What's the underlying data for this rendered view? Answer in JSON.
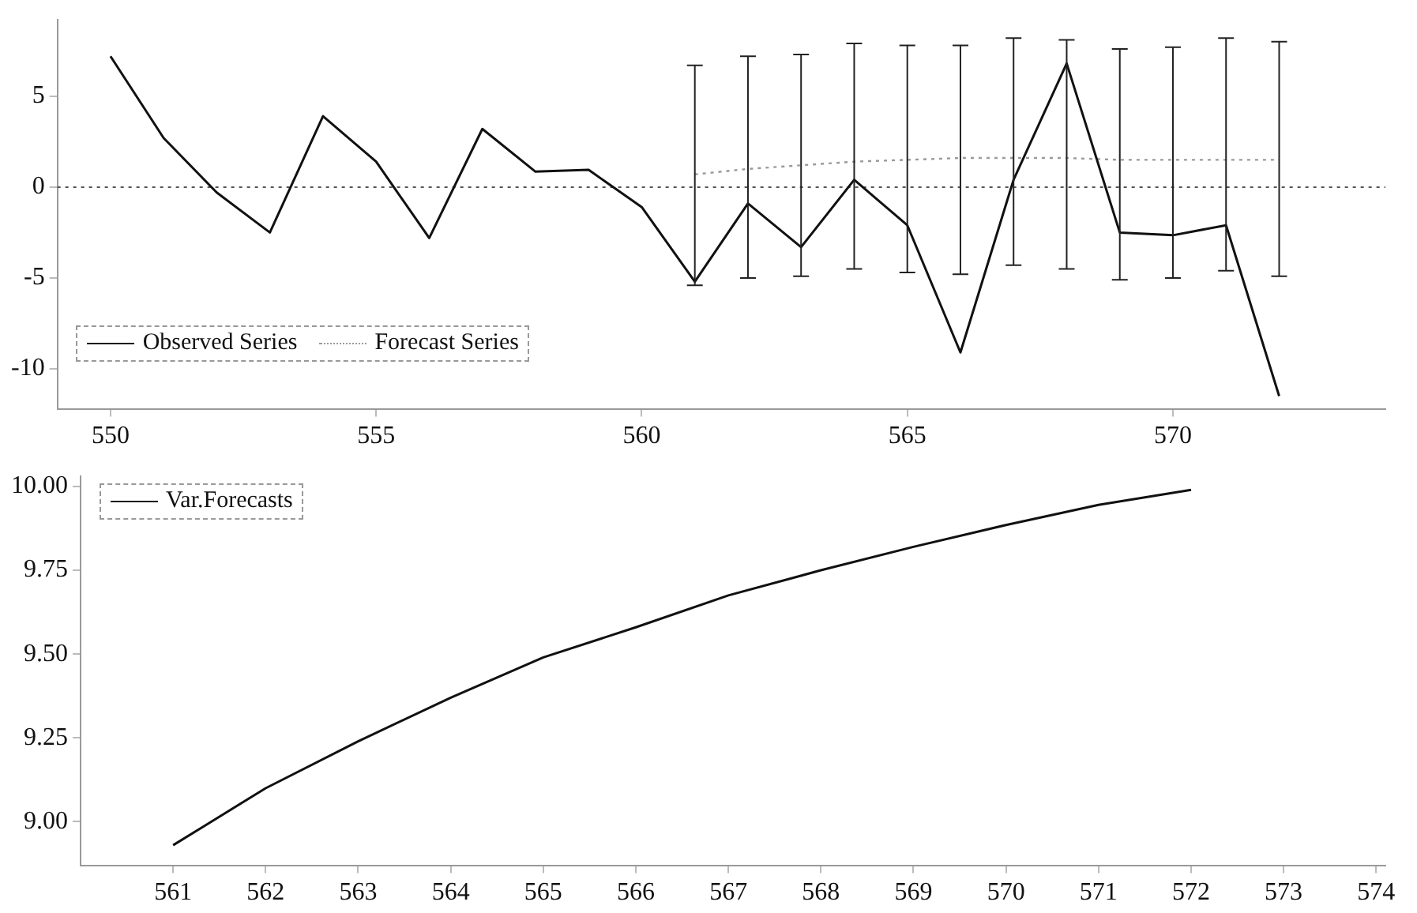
{
  "chart_data": [
    {
      "type": "line",
      "x": [
        550,
        551,
        552,
        553,
        554,
        555,
        556,
        557,
        558,
        559,
        560,
        561,
        562,
        563,
        564,
        565,
        566,
        567,
        568,
        569,
        570,
        571,
        572
      ],
      "series": [
        {
          "name": "Observed Series",
          "color": "#111111",
          "line_style": "solid",
          "values": [
            7.2,
            2.7,
            -0.3,
            -2.5,
            3.9,
            1.4,
            -2.8,
            3.2,
            0.85,
            0.95,
            -1.1,
            -5.2,
            -0.9,
            -3.3,
            0.4,
            -2.1,
            -9.1,
            0.4,
            6.8,
            -2.5,
            -2.65,
            -2.1,
            -11.5
          ]
        },
        {
          "name": "Forecast Series",
          "color": "#9a9a9a",
          "line_style": "dotted",
          "x": [
            561,
            562,
            563,
            564,
            565,
            566,
            567,
            568,
            569,
            570,
            571,
            572
          ],
          "values": [
            0.7,
            1.0,
            1.2,
            1.4,
            1.5,
            1.6,
            1.6,
            1.6,
            1.5,
            1.5,
            1.5,
            1.5
          ],
          "errors": [
            [
              -5.4,
              6.7
            ],
            [
              -5.0,
              7.2
            ],
            [
              -4.9,
              7.3
            ],
            [
              -4.5,
              7.9
            ],
            [
              -4.7,
              7.8
            ],
            [
              -4.8,
              7.8
            ],
            [
              -4.3,
              8.2
            ],
            [
              -4.5,
              8.1
            ],
            [
              -5.1,
              7.6
            ],
            [
              -5.0,
              7.7
            ],
            [
              -4.6,
              8.2
            ],
            [
              -4.9,
              8.0
            ]
          ]
        }
      ],
      "xlim": [
        549,
        574
      ],
      "xticks": [
        550,
        555,
        560,
        565,
        570
      ],
      "ylim": [
        -12.2,
        9.2
      ],
      "yticks": [
        -10,
        -5,
        0,
        5
      ],
      "ref_lines": [
        {
          "axis": "y",
          "value": 0,
          "line_style": "dotted",
          "color": "#555555"
        }
      ],
      "legend": "bottom left",
      "grid": false
    },
    {
      "type": "line",
      "x": [
        561,
        562,
        563,
        564,
        565,
        566,
        567,
        568,
        569,
        570,
        571,
        572
      ],
      "series": [
        {
          "name": "Var.Forecasts",
          "color": "#111111",
          "values": [
            8.93,
            9.1,
            9.24,
            9.37,
            9.49,
            9.58,
            9.675,
            9.75,
            9.82,
            9.885,
            9.945,
            9.99
          ]
        }
      ],
      "xlim": [
        560,
        574.1
      ],
      "xticks": [
        561,
        562,
        563,
        564,
        565,
        566,
        567,
        568,
        569,
        570,
        571,
        572,
        573,
        574
      ],
      "ylim": [
        8.87,
        10.03
      ],
      "yticks": [
        {
          "value": 9,
          "label": "9.00"
        },
        {
          "value": 9.25,
          "label": "9.25"
        },
        {
          "value": 9.5,
          "label": "9.50"
        },
        {
          "value": 9.75,
          "label": "9.75"
        },
        {
          "value": 10,
          "label": "10.00"
        }
      ],
      "legend": "top left",
      "grid": false
    }
  ]
}
